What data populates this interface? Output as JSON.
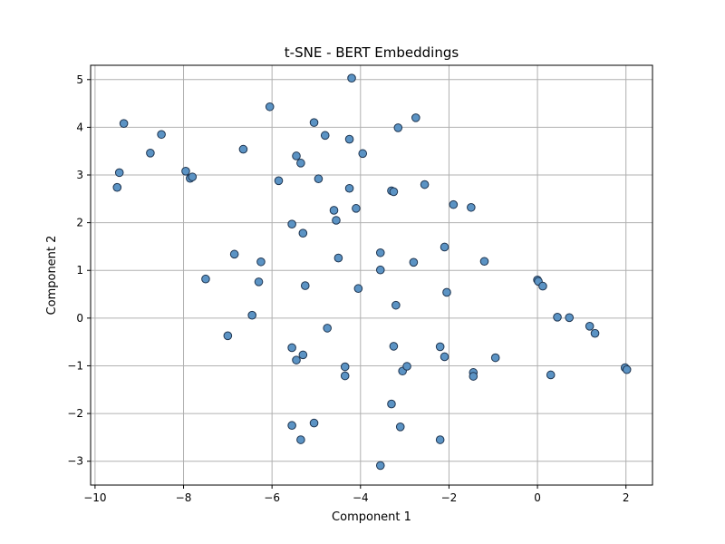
{
  "chart_data": {
    "type": "scatter",
    "title": "t-SNE - BERT Embeddings",
    "xlabel": "Component 1",
    "ylabel": "Component 2",
    "xlim": [
      -10.1,
      2.6
    ],
    "ylim": [
      -3.5,
      5.3
    ],
    "xticks": [
      -10,
      -8,
      -6,
      -4,
      -2,
      0,
      2
    ],
    "yticks": [
      -3,
      -2,
      -1,
      0,
      1,
      2,
      3,
      4,
      5
    ],
    "grid": true,
    "marker_color": "#5b93c4",
    "marker_edge_color": "#1f3550",
    "grid_color": "#b0b0b0",
    "x": [
      -4.2,
      -6.05,
      -5.05,
      -4.8,
      -4.25,
      -3.95,
      -3.15,
      -2.75,
      -9.35,
      -8.5,
      -8.75,
      -9.45,
      -9.5,
      -7.95,
      -7.85,
      -7.8,
      -6.65,
      -5.45,
      -5.35,
      -5.85,
      -4.95,
      -4.25,
      -3.3,
      -3.25,
      -2.55,
      -4.6,
      -4.1,
      -4.55,
      -5.55,
      -5.3,
      -1.9,
      -1.5,
      -3.55,
      -2.1,
      -4.5,
      -6.85,
      -6.25,
      -7.5,
      -6.3,
      -5.25,
      -3.55,
      -2.8,
      -4.05,
      -2.05,
      -1.2,
      -3.2,
      -6.45,
      -7.0,
      -4.75,
      -5.55,
      -5.3,
      -5.45,
      -4.35,
      -4.35,
      -3.25,
      -3.05,
      -2.95,
      -2.2,
      -2.1,
      -1.45,
      -1.45,
      -0.95,
      0.0,
      0.02,
      0.12,
      0.45,
      0.72,
      1.18,
      1.3,
      0.3,
      1.98,
      2.02,
      -3.3,
      -5.55,
      -5.05,
      -5.35,
      -3.1,
      -2.2,
      -3.55
    ],
    "y": [
      5.03,
      4.43,
      4.1,
      3.83,
      3.75,
      3.45,
      3.99,
      4.2,
      4.08,
      3.85,
      3.46,
      3.05,
      2.74,
      3.08,
      2.93,
      2.96,
      3.54,
      3.4,
      3.25,
      2.88,
      2.92,
      2.72,
      2.67,
      2.65,
      2.8,
      2.26,
      2.3,
      2.05,
      1.97,
      1.78,
      2.38,
      2.32,
      1.37,
      1.49,
      1.26,
      1.34,
      1.18,
      0.82,
      0.76,
      0.68,
      1.01,
      1.17,
      0.62,
      0.54,
      1.19,
      0.27,
      0.06,
      -0.37,
      -0.21,
      -0.62,
      -0.77,
      -0.88,
      -1.02,
      -1.21,
      -0.59,
      -1.11,
      -1.01,
      -0.6,
      -0.81,
      -1.14,
      -1.22,
      -0.83,
      0.8,
      0.77,
      0.67,
      0.02,
      0.01,
      -0.17,
      -0.32,
      -1.19,
      -1.04,
      -1.08,
      -1.8,
      -2.25,
      -2.2,
      -2.55,
      -2.28,
      -2.55,
      -3.09
    ]
  }
}
